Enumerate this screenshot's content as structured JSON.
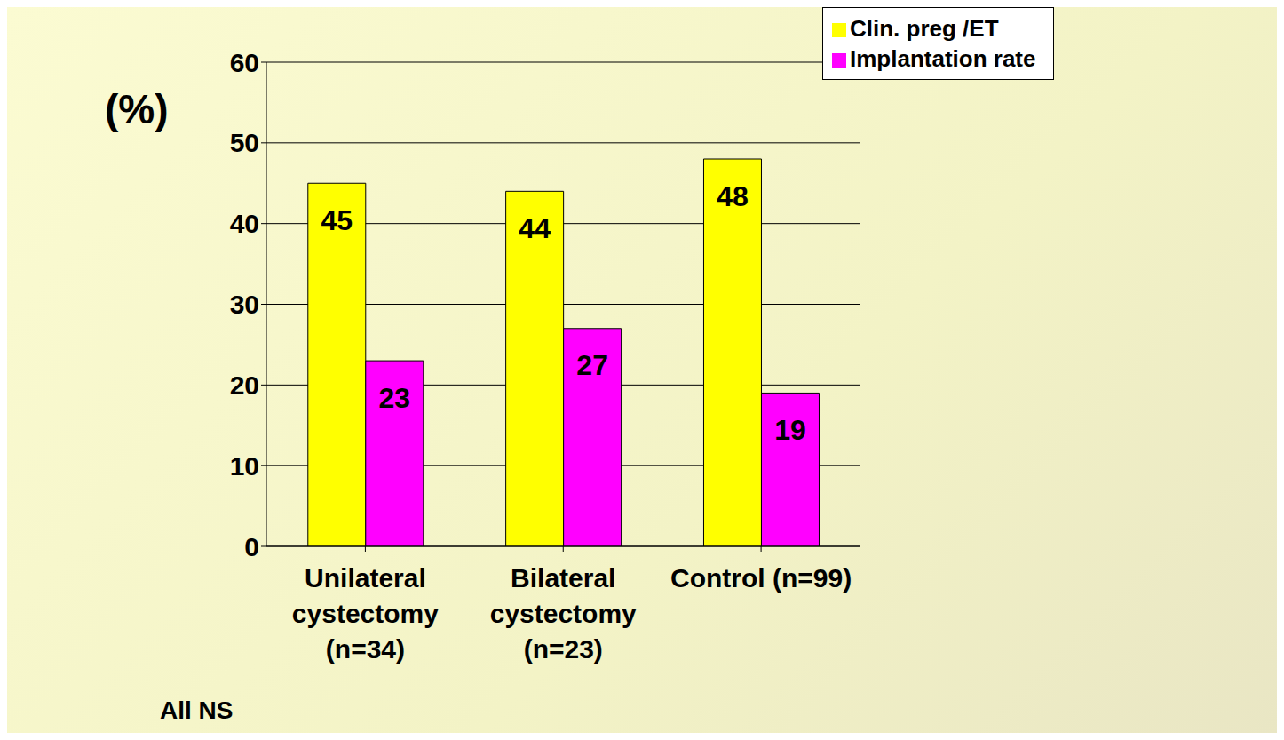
{
  "chart_data": {
    "type": "bar",
    "y_label": "(%)",
    "categories": [
      "Unilateral cystectomy (n=34)",
      "Bilateral cystectomy (n=23)",
      "Control (n=99)"
    ],
    "series": [
      {
        "name": "Clin. preg /ET",
        "color": "#ffff00",
        "values": [
          45,
          44,
          48
        ]
      },
      {
        "name": "Implantation rate",
        "color": "#ff00ff",
        "values": [
          23,
          27,
          19
        ]
      }
    ],
    "ylim": [
      0,
      60
    ],
    "yticks": [
      0,
      10,
      20,
      30,
      40,
      50,
      60
    ],
    "grid": true,
    "legend": "top-right",
    "data_labels": true,
    "annotation": "All NS"
  }
}
